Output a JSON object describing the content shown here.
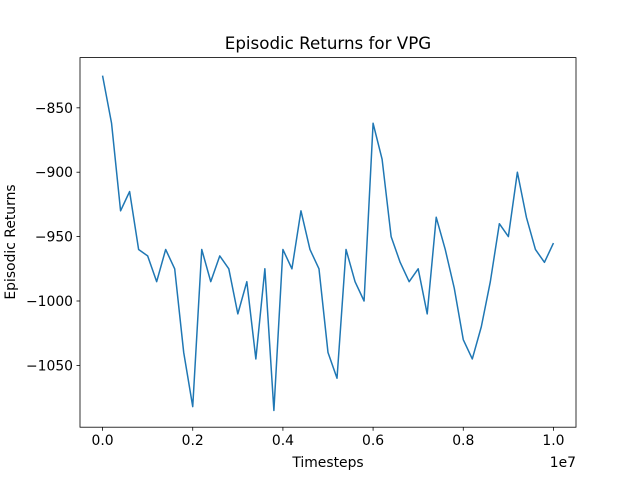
{
  "chart_data": {
    "type": "line",
    "title": "Episodic Returns for VPG",
    "xlabel": "Timesteps",
    "ylabel": "Episodic Returns",
    "x_offset_label": "1e7",
    "color": "#1f77b4",
    "x": [
      0,
      200000,
      400000,
      600000,
      800000,
      1000000,
      1200000,
      1400000,
      1600000,
      1800000,
      2000000,
      2200000,
      2400000,
      2600000,
      2800000,
      3000000,
      3200000,
      3400000,
      3600000,
      3800000,
      4000000,
      4200000,
      4400000,
      4600000,
      4800000,
      5000000,
      5200000,
      5400000,
      5600000,
      5800000,
      6000000,
      6200000,
      6400000,
      6600000,
      6800000,
      7000000,
      7200000,
      7400000,
      7600000,
      7800000,
      8000000,
      8200000,
      8400000,
      8600000,
      8800000,
      9000000,
      9200000,
      9400000,
      9600000,
      9800000,
      10000000
    ],
    "values": [
      -825,
      -862,
      -930,
      -915,
      -960,
      -965,
      -985,
      -960,
      -975,
      -1040,
      -1082,
      -960,
      -985,
      -965,
      -975,
      -1010,
      -985,
      -1045,
      -975,
      -1085,
      -960,
      -975,
      -930,
      -960,
      -975,
      -1040,
      -1060,
      -960,
      -985,
      -1000,
      -862,
      -890,
      -950,
      -970,
      -985,
      -975,
      -1010,
      -935,
      -960,
      -990,
      -1030,
      -1045,
      -1020,
      -985,
      -940,
      -950,
      -900,
      -935,
      -960,
      -970,
      -955
    ],
    "xlim": [
      -500000,
      10500000
    ],
    "xticks": [
      {
        "value": 0,
        "label": "0.0"
      },
      {
        "value": 2000000,
        "label": "0.2"
      },
      {
        "value": 4000000,
        "label": "0.4"
      },
      {
        "value": 6000000,
        "label": "0.6"
      },
      {
        "value": 8000000,
        "label": "0.8"
      },
      {
        "value": 10000000,
        "label": "1.0"
      }
    ],
    "ylim": [
      -1098,
      -811
    ],
    "yticks": [
      {
        "value": -1050,
        "label": "−1050"
      },
      {
        "value": -1000,
        "label": "−1000"
      },
      {
        "value": -950,
        "label": "−950"
      },
      {
        "value": -900,
        "label": "−900"
      },
      {
        "value": -850,
        "label": "−850"
      }
    ]
  }
}
